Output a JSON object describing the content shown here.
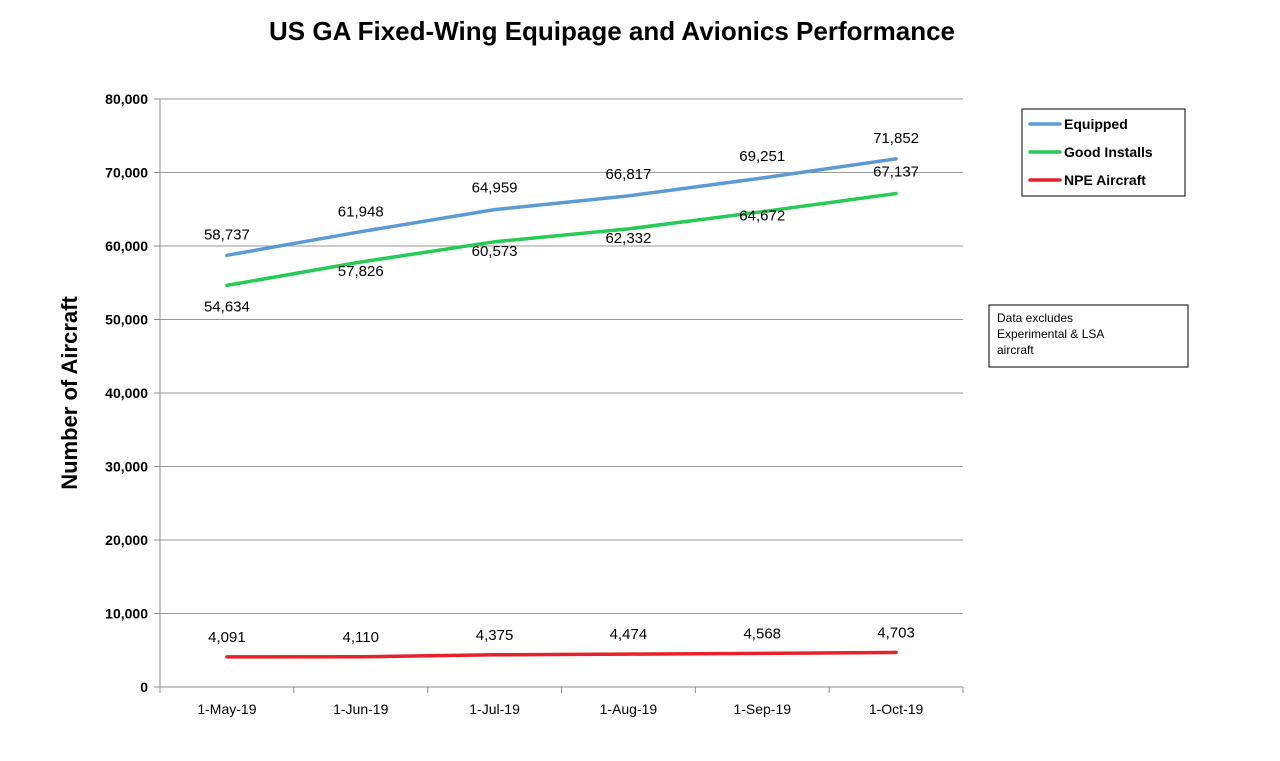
{
  "chart_data": {
    "type": "line",
    "title": "US GA Fixed-Wing Equipage and Avionics Performance",
    "xlabel": "",
    "ylabel": "Number of Aircraft",
    "categories": [
      "1-May-19",
      "1-Jun-19",
      "1-Jul-19",
      "1-Aug-19",
      "1-Sep-19",
      "1-Oct-19"
    ],
    "ylim": [
      0,
      80000
    ],
    "yticks": [
      0,
      10000,
      20000,
      30000,
      40000,
      50000,
      60000,
      70000,
      80000
    ],
    "ytick_labels": [
      "0",
      "10,000",
      "20,000",
      "30,000",
      "40,000",
      "50,000",
      "60,000",
      "70,000",
      "80,000"
    ],
    "grid": "horizontal",
    "legend_position": "top-right",
    "series": [
      {
        "name": "Equipped",
        "color": "#5b9bd5",
        "values": [
          58737,
          61948,
          64959,
          66817,
          69251,
          71852
        ],
        "labels": [
          "58,737",
          "61,948",
          "64,959",
          "66,817",
          "69,251",
          "71,852"
        ]
      },
      {
        "name": "Good Installs",
        "color": "#22cc55",
        "values": [
          54634,
          57826,
          60573,
          62332,
          64672,
          67137
        ],
        "labels": [
          "54,634",
          "57,826",
          "60,573",
          "62,332",
          "64,672",
          "67,137"
        ]
      },
      {
        "name": "NPE Aircraft",
        "color": "#e8202a",
        "values": [
          4091,
          4110,
          4375,
          4474,
          4568,
          4703
        ],
        "labels": [
          "4,091",
          "4,110",
          "4,375",
          "4,474",
          "4,568",
          "4,703"
        ]
      }
    ],
    "annotations": [
      {
        "lines": [
          "Data excludes",
          "Experimental & LSA",
          "aircraft"
        ]
      }
    ]
  }
}
